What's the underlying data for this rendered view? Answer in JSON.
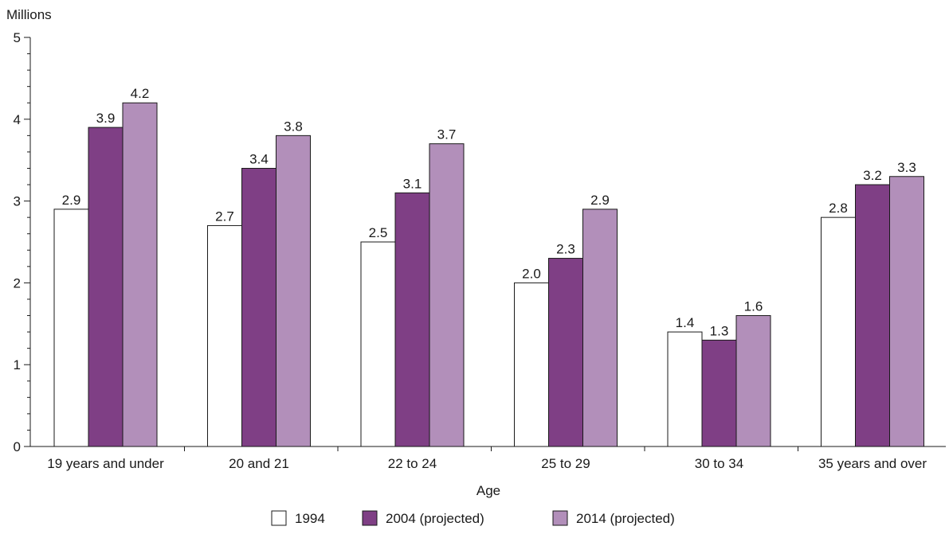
{
  "chart_data": {
    "type": "bar",
    "title": "",
    "ylabel": "Millions",
    "xlabel": "Age",
    "ylim": [
      0,
      5
    ],
    "yticks": [
      0,
      1,
      2,
      3,
      4,
      5
    ],
    "grid": false,
    "legend_position": "bottom-center",
    "categories": [
      "19 years and under",
      "20 and 21",
      "22 to 24",
      "25 to 29",
      "30 to 34",
      "35 years and over"
    ],
    "series": [
      {
        "name": "1994",
        "color": "#ffffff",
        "values": [
          2.9,
          2.7,
          2.5,
          2.0,
          1.4,
          2.8
        ],
        "labels": [
          "2.9",
          "2.7",
          "2.5",
          "2.0",
          "1.4",
          "2.8"
        ]
      },
      {
        "name": "2004 (projected)",
        "color": "#7f3f85",
        "values": [
          3.9,
          3.4,
          3.1,
          2.3,
          1.3,
          3.2
        ],
        "labels": [
          "3.9",
          "3.4",
          "3.1",
          "2.3",
          "1.3",
          "3.2"
        ]
      },
      {
        "name": "2014 (projected)",
        "color": "#b28fba",
        "values": [
          4.2,
          3.8,
          3.7,
          2.9,
          1.6,
          3.3
        ],
        "labels": [
          "4.2",
          "3.8",
          "3.7",
          "2.9",
          "1.6",
          "3.3"
        ]
      }
    ]
  }
}
